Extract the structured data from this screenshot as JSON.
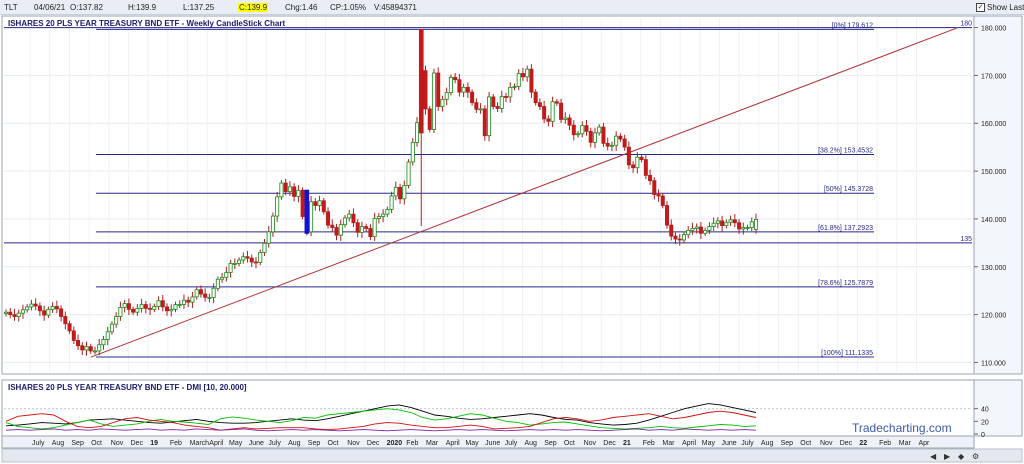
{
  "header": {
    "symbol": "TLT",
    "date": "04/06/21",
    "open": "O:137.82",
    "high": "H:139.9",
    "low": "L:137.25",
    "close": "C:139.9",
    "change": "Chg:1.46",
    "change_pct": "CP:1.05%",
    "volume": "V:45894371",
    "show_last_label": "Show Last",
    "show_last_checked": true
  },
  "watermark": "Tradecharting.com",
  "chart_data": [
    {
      "type": "candlestick",
      "title": "ISHARES 20 PLS YEAR TREASURY BND ETF - Weekly CandleStick Chart",
      "ylim": [
        108,
        182
      ],
      "y_ticks": [
        "110.000",
        "120.000",
        "130.000",
        "140.000",
        "150.000",
        "160.000",
        "170.000",
        "180.000"
      ],
      "x_labels": [
        "July",
        "Aug",
        "Sep",
        "Oct",
        "Nov",
        "Dec",
        "19",
        "Feb",
        "March",
        "April",
        "May",
        "June",
        "July",
        "Aug",
        "Sep",
        "Oct",
        "Nov",
        "Dec",
        "2020",
        "Feb",
        "Mar",
        "April",
        "May",
        "June",
        "July",
        "Aug",
        "Sep",
        "Oct",
        "Nov",
        "Dec",
        "21",
        "Feb",
        "Mar",
        "April",
        "May",
        "June",
        "July",
        "Aug",
        "Sep",
        "Oct",
        "Nov",
        "Dec",
        "22",
        "Feb",
        "Mar",
        "Apr"
      ],
      "close_series": [
        120.5,
        120.0,
        119.6,
        120.3,
        121.0,
        121.6,
        122.2,
        121.8,
        120.8,
        119.9,
        121.1,
        121.7,
        121.2,
        119.6,
        118.1,
        116.6,
        114.6,
        113.5,
        112.6,
        113.3,
        112.4,
        112.4,
        113.7,
        114.8,
        116.4,
        118.0,
        119.6,
        121.5,
        122.3,
        121.1,
        120.5,
        121.3,
        122.1,
        121.3,
        121.1,
        121.7,
        122.9,
        121.6,
        120.8,
        121.1,
        122.1,
        122.1,
        123.0,
        122.6,
        123.7,
        125.2,
        124.3,
        123.6,
        123.6,
        125.5,
        127.4,
        127.8,
        128.8,
        130.7,
        130.7,
        131.4,
        132.1,
        131.8,
        131.0,
        130.9,
        133.0,
        134.9,
        137.3,
        140.6,
        144.6,
        147.5,
        145.7,
        146.7,
        144.7,
        146.0,
        140.5,
        137.3,
        143.6,
        142.8,
        143.8,
        141.5,
        138.7,
        138.2,
        136.6,
        138.8,
        140.2,
        141.0,
        139.2,
        137.2,
        138.4,
        138.0,
        136.3,
        140.1,
        140.5,
        141.0,
        142.0,
        144.8,
        146.6,
        144.2,
        147.0,
        151.9,
        156.0,
        160.1,
        171.0,
        163.0,
        158.7,
        170.5,
        163.5,
        165.0,
        166.4,
        169.6,
        169.1,
        166.5,
        167.5,
        166.5,
        164.3,
        162.9,
        163.0,
        157.4,
        165.5,
        163.5,
        163.1,
        165.6,
        165.5,
        167.5,
        167.7,
        170.4,
        169.7,
        171.3,
        166.5,
        164.3,
        163.5,
        160.9,
        160.4,
        164.5,
        164.2,
        160.8,
        161.1,
        159.6,
        157.6,
        157.8,
        159.5,
        158.3,
        156.0,
        158.0,
        159.2,
        155.8,
        155.2,
        155.4,
        157.3,
        156.7,
        155.0,
        151.3,
        150.7,
        152.9,
        152.4,
        149.1,
        148.0,
        145.1,
        144.8,
        142.8,
        138.7,
        136.4,
        135.8,
        135.6,
        136.7,
        137.6,
        138.0,
        138.3,
        137.0,
        137.6,
        138.4,
        139.1,
        139.6,
        138.6,
        139.3,
        139.8,
        139.2,
        137.9,
        138.2,
        138.2,
        139.4,
        139.9
      ],
      "current_bar": {
        "open": 137.82,
        "high": 139.9,
        "low": 137.25,
        "close": 139.9
      },
      "fibonacci": [
        {
          "label": "[0%] 179.612",
          "value": 179.612
        },
        {
          "label": "[38.2%] 153.4532",
          "value": 153.4532
        },
        {
          "label": "[50%] 145.3728",
          "value": 145.3728
        },
        {
          "label": "[61.8%] 137.2923",
          "value": 137.2923
        },
        {
          "label": "[78.6%] 125.7879",
          "value": 125.7879
        },
        {
          "label": "[100%] 111.1335",
          "value": 111.1335
        }
      ],
      "horizontal_levels": [
        {
          "label": "180",
          "value": 180.0
        },
        {
          "label": "135",
          "value": 135.0
        }
      ],
      "trendline": {
        "from": {
          "x": "2018-10",
          "y": 111.1
        },
        "to": {
          "x": "2022-04",
          "y": 180.0
        },
        "color": "#b03030"
      }
    },
    {
      "type": "line",
      "title": "ISHARES 20 PLS YEAR TREASURY BND ETF - DMI [10, 20.000]",
      "y_ticks": [
        "40",
        "20",
        "0"
      ],
      "ylim": [
        0,
        60
      ],
      "series": [
        {
          "color": "#000000",
          "values": [
            13,
            14,
            16,
            18,
            17,
            16,
            18,
            22,
            23,
            24,
            22,
            20,
            18,
            17,
            19,
            21,
            23,
            20,
            18,
            17,
            17,
            18,
            20,
            22,
            24,
            22,
            21,
            24,
            28,
            32,
            36,
            40,
            44,
            46,
            42,
            36,
            30,
            28,
            25,
            23,
            24,
            26,
            28,
            30,
            32,
            30,
            26,
            23,
            22,
            18,
            16,
            14,
            15,
            17,
            22,
            28,
            34,
            40,
            44,
            48,
            46,
            42,
            38,
            34
          ]
        },
        {
          "color": "#00c000",
          "values": [
            18,
            12,
            10,
            8,
            10,
            14,
            18,
            22,
            16,
            12,
            14,
            16,
            20,
            23,
            20,
            19,
            17,
            15,
            24,
            27,
            25,
            22,
            20,
            18,
            21,
            26,
            25,
            30,
            32,
            34,
            36,
            38,
            40,
            38,
            34,
            26,
            22,
            24,
            28,
            32,
            30,
            25,
            20,
            18,
            14,
            16,
            18,
            19,
            16,
            13,
            10,
            9,
            8,
            9,
            10,
            12,
            10,
            9,
            11,
            13,
            15,
            14,
            12,
            13
          ]
        },
        {
          "color": "#d01010",
          "values": [
            20,
            28,
            30,
            32,
            30,
            20,
            12,
            10,
            12,
            18,
            24,
            26,
            22,
            20,
            18,
            14,
            12,
            10,
            6,
            8,
            10,
            8,
            9,
            10,
            10,
            10,
            8,
            7,
            8,
            10,
            12,
            16,
            18,
            17,
            14,
            12,
            10,
            10,
            12,
            14,
            12,
            8,
            9,
            10,
            12,
            18,
            24,
            26,
            24,
            20,
            22,
            26,
            28,
            30,
            32,
            28,
            24,
            26,
            30,
            34,
            36,
            34,
            30,
            26
          ]
        },
        {
          "color": "#8020a0",
          "values": [
            6,
            7,
            6,
            7,
            8,
            6,
            7,
            6,
            8,
            7,
            6,
            7,
            8,
            6,
            7,
            6,
            8,
            7,
            6,
            7,
            8,
            6,
            5,
            6,
            7,
            6,
            7,
            6,
            5,
            6,
            7,
            6,
            5,
            6,
            7,
            6,
            5,
            6,
            7,
            6,
            7,
            6,
            5,
            6,
            7,
            6,
            7,
            6,
            7,
            6,
            5,
            6,
            7,
            8,
            6,
            7,
            6,
            8,
            7,
            6,
            7,
            6,
            7,
            6
          ]
        }
      ]
    }
  ]
}
